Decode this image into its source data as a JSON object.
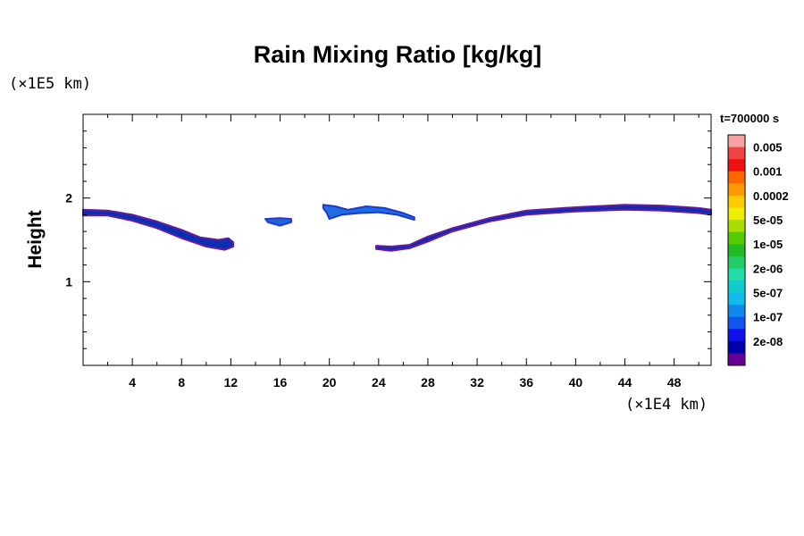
{
  "chart_data": {
    "type": "heatmap",
    "title": "Rain Mixing Ratio [kg/kg]",
    "ylabel": "Height",
    "x_unit": "(×1E4 km)",
    "y_unit": "(×1E5 km)",
    "time_label": "t=700000 s",
    "xlim": [
      0,
      51
    ],
    "ylim": [
      0,
      3
    ],
    "x_ticks": [
      4,
      8,
      12,
      16,
      20,
      24,
      28,
      32,
      36,
      40,
      44,
      48
    ],
    "y_ticks": [
      1,
      2
    ],
    "colorbar": {
      "labels": [
        "0.005",
        "0.001",
        "0.0002",
        "5e-05",
        "1e-05",
        "2e-06",
        "5e-07",
        "1e-07",
        "2e-08"
      ],
      "colors": [
        "#f7a3a3",
        "#ee4444",
        "#ee1111",
        "#ff6600",
        "#ff9900",
        "#ffcc00",
        "#eeee00",
        "#aadd00",
        "#55cc00",
        "#22bb22",
        "#22cc66",
        "#22ddaa",
        "#11cccc",
        "#11bbee",
        "#1188ee",
        "#1155ee",
        "#1111ee",
        "#0000aa",
        "#660099"
      ]
    },
    "features": [
      {
        "name": "band-left",
        "fill": "#0a2fb0",
        "edge": "#6a1aa0",
        "top": [
          [
            0,
            1.86
          ],
          [
            2,
            1.85
          ],
          [
            4,
            1.8
          ],
          [
            6,
            1.72
          ],
          [
            8,
            1.62
          ],
          [
            9.5,
            1.53
          ],
          [
            11,
            1.5
          ],
          [
            11.8,
            1.52
          ],
          [
            12.2,
            1.47
          ]
        ],
        "bottom": [
          [
            12.2,
            1.42
          ],
          [
            11.5,
            1.38
          ],
          [
            10,
            1.42
          ],
          [
            8,
            1.52
          ],
          [
            6,
            1.64
          ],
          [
            4,
            1.73
          ],
          [
            2,
            1.79
          ],
          [
            0,
            1.79
          ]
        ]
      },
      {
        "name": "blob-small",
        "fill": "#1e63d8",
        "edge": "#2a3ad0",
        "top": [
          [
            14.8,
            1.75
          ],
          [
            16,
            1.76
          ],
          [
            16.9,
            1.75
          ]
        ],
        "bottom": [
          [
            16.9,
            1.71
          ],
          [
            16,
            1.67
          ],
          [
            15,
            1.71
          ]
        ]
      },
      {
        "name": "arc-upper",
        "fill": "#1e6ee0",
        "edge": "#1d3ad0",
        "top": [
          [
            19.5,
            1.92
          ],
          [
            20.5,
            1.9
          ],
          [
            21.5,
            1.86
          ],
          [
            23,
            1.9
          ],
          [
            24.5,
            1.88
          ],
          [
            26,
            1.82
          ],
          [
            26.9,
            1.77
          ]
        ],
        "bottom": [
          [
            26.9,
            1.74
          ],
          [
            25.5,
            1.8
          ],
          [
            24,
            1.83
          ],
          [
            22.5,
            1.82
          ],
          [
            21,
            1.8
          ],
          [
            20,
            1.75
          ],
          [
            19.8,
            1.82
          ],
          [
            19.5,
            1.88
          ]
        ]
      },
      {
        "name": "band-right",
        "fill": "#0a2fb0",
        "edge": "#6a1aa0",
        "top": [
          [
            23.8,
            1.43
          ],
          [
            25,
            1.42
          ],
          [
            26.5,
            1.44
          ],
          [
            28,
            1.54
          ],
          [
            30,
            1.64
          ],
          [
            33,
            1.76
          ],
          [
            36,
            1.85
          ],
          [
            40,
            1.89
          ],
          [
            44,
            1.92
          ],
          [
            47,
            1.91
          ],
          [
            50,
            1.88
          ],
          [
            51,
            1.86
          ]
        ],
        "bottom": [
          [
            51,
            1.8
          ],
          [
            50,
            1.82
          ],
          [
            47,
            1.85
          ],
          [
            44,
            1.86
          ],
          [
            40,
            1.84
          ],
          [
            36,
            1.8
          ],
          [
            33,
            1.72
          ],
          [
            30,
            1.6
          ],
          [
            28,
            1.48
          ],
          [
            26.5,
            1.4
          ],
          [
            25,
            1.37
          ],
          [
            23.8,
            1.39
          ]
        ]
      }
    ]
  }
}
